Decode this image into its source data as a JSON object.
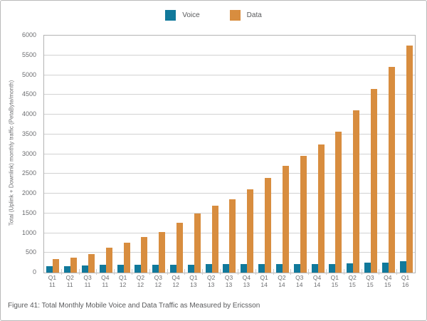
{
  "figure": {
    "caption": "Figure 41: Total Monthly Mobile Voice and Data Traffic as Measured by Ericsson"
  },
  "chart_data": {
    "type": "bar",
    "title": "Figure 41: Total Monthly Mobile Voice and Data Traffic as Measured by Ericsson",
    "xlabel": "",
    "ylabel": "Total (Uplink + Downlink) monthly traffic (PetaByte/month)",
    "ylim": [
      0,
      6000
    ],
    "ytick_step": 500,
    "grid": true,
    "legend_position": "top-center",
    "categories": [
      "Q1 11",
      "Q2 11",
      "Q3 11",
      "Q4 11",
      "Q1 12",
      "Q2 12",
      "Q3 12",
      "Q4 12",
      "Q1 13",
      "Q2 13",
      "Q3 13",
      "Q4 13",
      "Q1 14",
      "Q2 14",
      "Q3 14",
      "Q4 14",
      "Q1 15",
      "Q2 15",
      "Q3 15",
      "Q4 15",
      "Q1 16"
    ],
    "series": [
      {
        "name": "Voice",
        "color": "#11799b",
        "values": [
          155,
          170,
          175,
          190,
          195,
          200,
          200,
          205,
          205,
          210,
          210,
          210,
          215,
          215,
          215,
          220,
          220,
          240,
          250,
          260,
          280
        ]
      },
      {
        "name": "Data",
        "color": "#d88d3f",
        "values": [
          345,
          380,
          470,
          630,
          760,
          900,
          1030,
          1260,
          1500,
          1700,
          1850,
          2100,
          2400,
          2700,
          2950,
          3250,
          3575,
          4100,
          4650,
          5200,
          5750
        ]
      }
    ],
    "colors": {
      "voice": "#11799b",
      "data": "#d88d3f",
      "gridline": "#d2d2d2",
      "axis_border": "#b3b3b3",
      "label_text": "#6d6e71",
      "caption_text": "#58595b"
    }
  }
}
